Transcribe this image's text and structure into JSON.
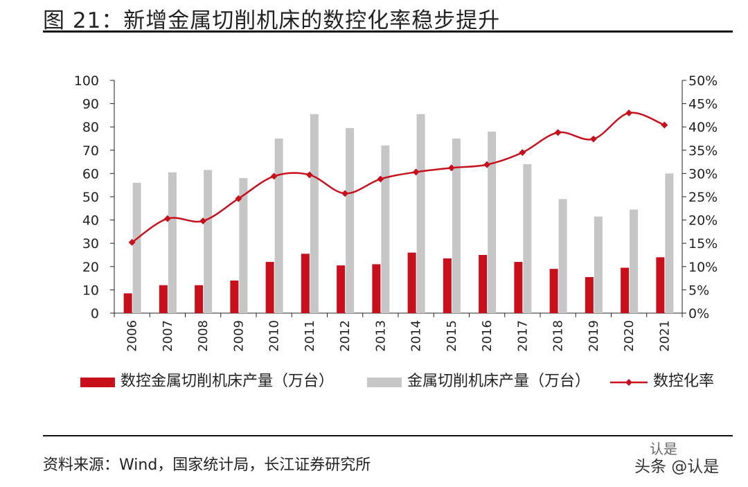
{
  "figure": {
    "title": "图 21：新增金属切削机床的数控化率稳步提升",
    "source": "资料来源：Wind，国家统计局，长江证券研究所",
    "watermark": "头条 @认是",
    "watermark_logo": "认是"
  },
  "colors": {
    "red": "#c8101d",
    "gray": "#c6c6c6",
    "axis": "#222222"
  },
  "chart_data": {
    "type": "bar",
    "title": "",
    "categories": [
      "2006",
      "2007",
      "2008",
      "2009",
      "2010",
      "2011",
      "2012",
      "2013",
      "2014",
      "2015",
      "2016",
      "2017",
      "2018",
      "2019",
      "2020",
      "2021"
    ],
    "ylim": [
      0,
      100
    ],
    "yticks": [
      "0",
      "10",
      "20",
      "30",
      "40",
      "50",
      "60",
      "70",
      "80",
      "90",
      "100"
    ],
    "y2lim": [
      0,
      50
    ],
    "y2ticks": [
      "0%",
      "5%",
      "10%",
      "15%",
      "20%",
      "25%",
      "30%",
      "35%",
      "40%",
      "45%",
      "50%"
    ],
    "series": [
      {
        "name": "数控金属切削机床产量（万台）",
        "type": "bar",
        "axis": "left",
        "values": [
          8.5,
          12,
          12,
          14,
          22,
          25.5,
          20.5,
          21,
          26,
          23.5,
          25,
          22,
          19,
          15.5,
          19.5,
          24
        ]
      },
      {
        "name": "金属切削机床产量（万台）",
        "type": "bar",
        "axis": "left",
        "values": [
          56,
          60.5,
          61.5,
          58,
          75,
          85.5,
          79.5,
          72,
          85.5,
          75,
          78,
          64,
          49,
          41.5,
          44.5,
          60
        ]
      },
      {
        "name": "数控化率",
        "type": "line",
        "axis": "right",
        "values": [
          15.2,
          20.3,
          19.8,
          24.6,
          29.4,
          29.7,
          25.7,
          28.8,
          30.3,
          31.2,
          31.9,
          34.5,
          38.8,
          37.4,
          43.0,
          40.4
        ]
      }
    ]
  }
}
